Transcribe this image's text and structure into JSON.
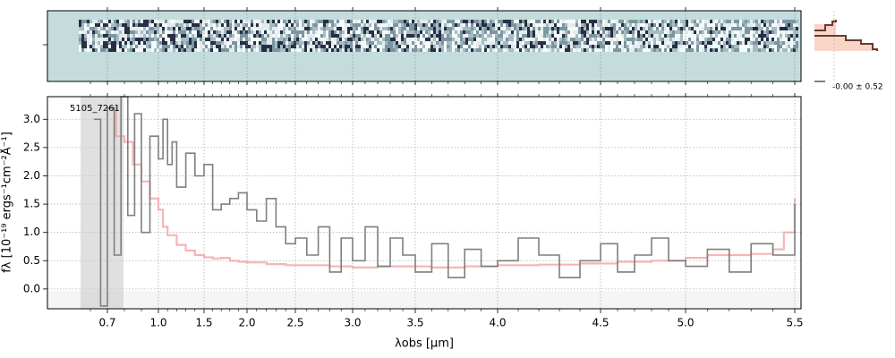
{
  "chart_data": [
    {
      "type": "heatmap",
      "panel": "2d-spectrum",
      "colormap": [
        "#c5dcdc",
        "#ffffff",
        "#0a0f2a"
      ],
      "background_color": "#c5dcdc",
      "shares_x_axis_with": "1d-spectrum",
      "grid": true
    },
    {
      "type": "line",
      "panel": "1d-spectrum",
      "label": "5105_7261",
      "xlabel": "λobs [μm]",
      "ylabel": "fλ [10⁻¹⁹ ergs⁻¹cm⁻²Å⁻¹]",
      "x_scale": "nonlinear",
      "xlim": [
        0.58,
        5.52
      ],
      "ylim": [
        -0.35,
        3.4
      ],
      "xticks": [
        0.7,
        1.0,
        1.5,
        2.0,
        2.5,
        3.0,
        3.5,
        4.0,
        4.5,
        5.0,
        5.5
      ],
      "xtick_labels": [
        "0.7",
        "1.0",
        "1.5",
        "2.0",
        "2.5",
        "3.0",
        "3.5",
        "4.0",
        "4.5",
        "5.0",
        "5.5"
      ],
      "yticks": [
        0.0,
        0.5,
        1.0,
        1.5,
        2.0,
        2.5,
        3.0
      ],
      "ytick_labels": [
        "0.0",
        "0.5",
        "1.0",
        "1.5",
        "2.0",
        "2.5",
        "3.0"
      ],
      "grid": true,
      "series": [
        {
          "role": "data",
          "color": "#7f7f7f",
          "drawstyle": "steps",
          "x": [
            0.62,
            0.66,
            0.7,
            0.74,
            0.78,
            0.82,
            0.86,
            0.9,
            0.95,
            1.0,
            1.05,
            1.1,
            1.15,
            1.2,
            1.3,
            1.4,
            1.5,
            1.6,
            1.7,
            1.8,
            1.9,
            2.0,
            2.1,
            2.2,
            2.3,
            2.4,
            2.5,
            2.6,
            2.7,
            2.8,
            2.9,
            3.0,
            3.1,
            3.2,
            3.3,
            3.4,
            3.5,
            3.6,
            3.7,
            3.8,
            3.9,
            4.0,
            4.1,
            4.2,
            4.3,
            4.4,
            4.5,
            4.6,
            4.7,
            4.8,
            4.9,
            5.0,
            5.1,
            5.2,
            5.3,
            5.4,
            5.5
          ],
          "y": [
            3.0,
            -0.3,
            3.2,
            0.6,
            3.4,
            1.3,
            3.1,
            1.0,
            2.7,
            2.3,
            3.0,
            2.2,
            2.6,
            1.8,
            2.4,
            2.0,
            2.2,
            1.4,
            1.5,
            1.6,
            1.7,
            1.4,
            1.2,
            1.6,
            1.1,
            0.8,
            0.9,
            0.6,
            1.1,
            0.3,
            0.9,
            0.5,
            1.1,
            0.4,
            0.9,
            0.6,
            0.3,
            0.8,
            0.2,
            0.7,
            0.4,
            0.5,
            0.9,
            0.6,
            0.2,
            0.5,
            0.8,
            0.3,
            0.6,
            0.9,
            0.5,
            0.4,
            0.7,
            0.3,
            0.8,
            0.6,
            1.5
          ]
        },
        {
          "role": "model",
          "color": "#f4a3a3",
          "drawstyle": "steps",
          "x": [
            0.7,
            0.75,
            0.8,
            0.85,
            0.9,
            0.95,
            1.0,
            1.05,
            1.1,
            1.2,
            1.3,
            1.4,
            1.5,
            1.6,
            1.7,
            1.8,
            1.9,
            2.0,
            2.2,
            2.4,
            2.6,
            2.8,
            3.0,
            3.2,
            3.4,
            3.6,
            3.8,
            4.0,
            4.2,
            4.4,
            4.6,
            4.8,
            5.0,
            5.1,
            5.2,
            5.3,
            5.4,
            5.45,
            5.5
          ],
          "y": [
            3.2,
            2.7,
            2.6,
            2.2,
            1.9,
            1.6,
            1.4,
            1.1,
            0.95,
            0.78,
            0.68,
            0.6,
            0.56,
            0.54,
            0.55,
            0.5,
            0.48,
            0.47,
            0.44,
            0.42,
            0.42,
            0.4,
            0.38,
            0.4,
            0.4,
            0.38,
            0.4,
            0.42,
            0.43,
            0.45,
            0.48,
            0.5,
            0.55,
            0.6,
            0.6,
            0.62,
            0.7,
            1.0,
            1.6
          ]
        }
      ]
    },
    {
      "type": "line",
      "panel": "sidebar-profile",
      "annotation": "-0.00 ± 0.52",
      "series": [
        {
          "role": "profile",
          "color": "#6b3a2f",
          "drawstyle": "steps"
        }
      ]
    }
  ]
}
